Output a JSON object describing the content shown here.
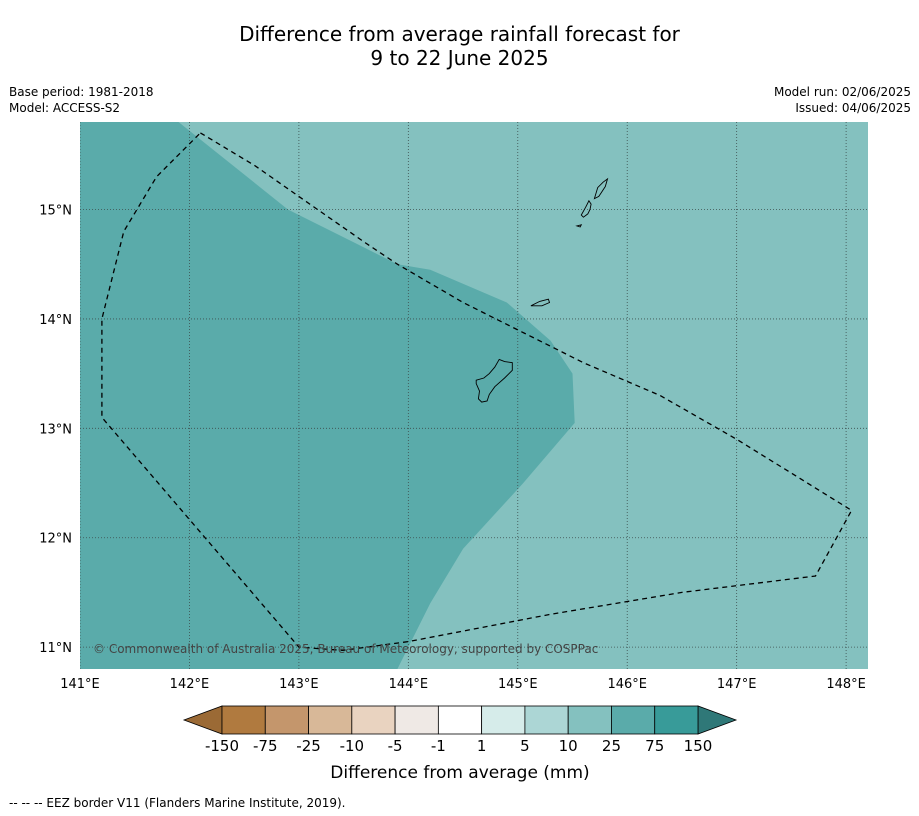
{
  "title": {
    "line1": "Difference from average rainfall forecast for",
    "line2": "9 to 22 June 2025"
  },
  "info_left": {
    "base_period": "Base period: 1981-2018",
    "model": "Model: ACCESS-S2"
  },
  "info_right": {
    "model_run": "Model run: 02/06/2025",
    "issued": "Issued: 04/06/2025"
  },
  "map": {
    "lon_range": [
      141.0,
      148.2
    ],
    "lat_range": [
      10.8,
      15.8
    ],
    "lon_ticks": [
      {
        "value": 141,
        "label": "141°E"
      },
      {
        "value": 142,
        "label": "142°E"
      },
      {
        "value": 143,
        "label": "143°E"
      },
      {
        "value": 144,
        "label": "144°E"
      },
      {
        "value": 145,
        "label": "145°E"
      },
      {
        "value": 146,
        "label": "146°E"
      },
      {
        "value": 147,
        "label": "147°E"
      },
      {
        "value": 148,
        "label": "148°E"
      }
    ],
    "lat_ticks": [
      {
        "value": 15,
        "label": "15°N"
      },
      {
        "value": 14,
        "label": "14°N"
      },
      {
        "value": 13,
        "label": "13°N"
      },
      {
        "value": 12,
        "label": "12°N"
      },
      {
        "value": 11,
        "label": "11°N"
      }
    ],
    "background_category": "10 to 25 mm",
    "background_color": "#84c1bf",
    "region_color": "#5aabaa",
    "region_category": "25 to 75 mm",
    "wetter_region": [
      [
        141.0,
        15.8
      ],
      [
        141.9,
        15.8
      ],
      [
        142.9,
        15.0
      ],
      [
        143.5,
        14.7
      ],
      [
        143.9,
        14.5
      ],
      [
        144.2,
        14.45
      ],
      [
        144.9,
        14.15
      ],
      [
        145.3,
        13.8
      ],
      [
        145.5,
        13.5
      ],
      [
        145.52,
        13.05
      ],
      [
        145.05,
        12.5
      ],
      [
        144.5,
        11.9
      ],
      [
        144.2,
        11.4
      ],
      [
        143.9,
        10.8
      ],
      [
        141.0,
        10.8
      ]
    ],
    "eez_border": [
      [
        142.1,
        15.7
      ],
      [
        142.6,
        15.4
      ],
      [
        143.1,
        15.05
      ],
      [
        143.6,
        14.7
      ],
      [
        143.9,
        14.5
      ],
      [
        144.5,
        14.15
      ],
      [
        145.0,
        13.9
      ],
      [
        145.2,
        13.8
      ],
      [
        145.6,
        13.6
      ],
      [
        146.3,
        13.3
      ],
      [
        147.0,
        12.9
      ],
      [
        148.05,
        12.25
      ],
      [
        147.72,
        11.65
      ],
      [
        146.5,
        11.5
      ],
      [
        145.3,
        11.3
      ],
      [
        144.0,
        11.05
      ],
      [
        143.4,
        10.97
      ],
      [
        143.0,
        11.0
      ],
      [
        141.2,
        13.1
      ],
      [
        141.2,
        14.0
      ],
      [
        141.4,
        14.8
      ],
      [
        141.7,
        15.3
      ],
      [
        142.1,
        15.7
      ]
    ],
    "islands": [
      {
        "name": "guam",
        "points": [
          [
            144.62,
            13.44
          ],
          [
            144.69,
            13.46
          ],
          [
            144.74,
            13.5
          ],
          [
            144.79,
            13.56
          ],
          [
            144.83,
            13.63
          ],
          [
            144.88,
            13.61
          ],
          [
            144.95,
            13.6
          ],
          [
            144.95,
            13.53
          ],
          [
            144.88,
            13.46
          ],
          [
            144.79,
            13.38
          ],
          [
            144.74,
            13.31
          ],
          [
            144.72,
            13.25
          ],
          [
            144.67,
            13.24
          ],
          [
            144.64,
            13.27
          ],
          [
            144.65,
            13.34
          ],
          [
            144.62,
            13.41
          ]
        ]
      },
      {
        "name": "rota",
        "points": [
          [
            145.12,
            14.12
          ],
          [
            145.2,
            14.16
          ],
          [
            145.28,
            14.18
          ],
          [
            145.29,
            14.15
          ],
          [
            145.22,
            14.12
          ],
          [
            145.15,
            14.12
          ]
        ]
      },
      {
        "name": "tinian",
        "points": [
          [
            145.58,
            14.95
          ],
          [
            145.62,
            15.02
          ],
          [
            145.65,
            15.08
          ],
          [
            145.67,
            15.05
          ],
          [
            145.66,
            15.0
          ],
          [
            145.64,
            14.96
          ],
          [
            145.6,
            14.93
          ]
        ]
      },
      {
        "name": "saipan",
        "points": [
          [
            145.7,
            15.1
          ],
          [
            145.73,
            15.2
          ],
          [
            145.78,
            15.25
          ],
          [
            145.82,
            15.28
          ],
          [
            145.8,
            15.21
          ],
          [
            145.76,
            15.15
          ],
          [
            145.74,
            15.12
          ]
        ]
      },
      {
        "name": "aguijan",
        "points": [
          [
            145.54,
            14.85
          ],
          [
            145.58,
            14.86
          ],
          [
            145.57,
            14.84
          ]
        ]
      }
    ],
    "copyright": "© Commonwealth of Australia 2025, Bureau of Meteorology, supported by COSPPac"
  },
  "colorbar": {
    "labels": [
      "-150",
      "-75",
      "-25",
      "-10",
      "-5",
      "-1",
      "1",
      "5",
      "10",
      "25",
      "75",
      "150"
    ],
    "colors": [
      "#b07a3f",
      "#c4966c",
      "#d8b898",
      "#e9d3c0",
      "#efe9e5",
      "#ffffff",
      "#d6ecea",
      "#acd6d5",
      "#84c1bf",
      "#5aabaa",
      "#389b99"
    ],
    "under_color": "#9b6a35",
    "over_color": "#2f7878",
    "title": "Difference from average (mm)"
  },
  "footnote": "--  --  -- EEZ border V11 (Flanders Marine Institute, 2019)."
}
